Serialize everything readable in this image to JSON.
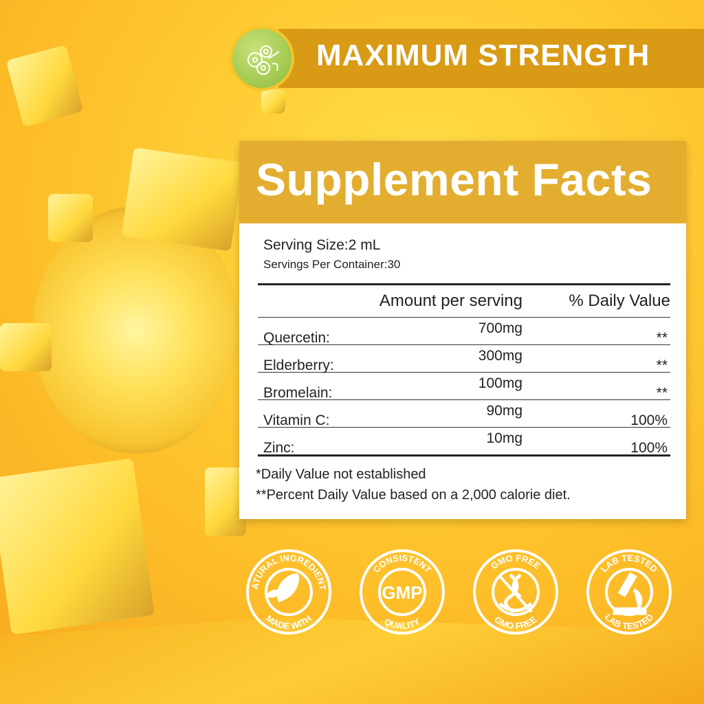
{
  "banner": {
    "title": "MAXIMUM STRENGTH",
    "icon": "berries-icon"
  },
  "facts": {
    "title": "Supplement Facts",
    "serving_size": "Serving Size:2 mL",
    "servings_per_container": "Servings Per Container:30",
    "headers": [
      "Amount per serving",
      "% Daily Value"
    ],
    "rows": [
      {
        "name": "Quercetin:",
        "amount": "700mg",
        "dv": "**"
      },
      {
        "name": "Elderberry:",
        "amount": "300mg",
        "dv": "**"
      },
      {
        "name": "Bromelain:",
        "amount": "100mg",
        "dv": "**"
      },
      {
        "name": "Vitamin C:",
        "amount": "90mg",
        "dv": "100%"
      },
      {
        "name": "Zinc:",
        "amount": "10mg",
        "dv": "100%"
      }
    ],
    "footnote1": "*Daily Value not established",
    "footnote2": "**Percent Daily Value based on a 2,000 calorie diet."
  },
  "badges": [
    {
      "top": "NATURAL INGREDIENTS",
      "bottom": "MADE WITH",
      "center": "",
      "icon": "leaf-icon"
    },
    {
      "top": "CONSISTENT",
      "bottom": "QUALITY",
      "center": "GMP",
      "icon": ""
    },
    {
      "top": "GMO FREE",
      "bottom": "GMO FREE",
      "center": "",
      "icon": "dna-icon"
    },
    {
      "top": "LAB TESTED",
      "bottom": "LAB TESTED",
      "center": "",
      "icon": "microscope-icon"
    }
  ],
  "colors": {
    "banner": "#d99a15",
    "header": "#e3ae30",
    "logo": "#8cbc3a"
  }
}
